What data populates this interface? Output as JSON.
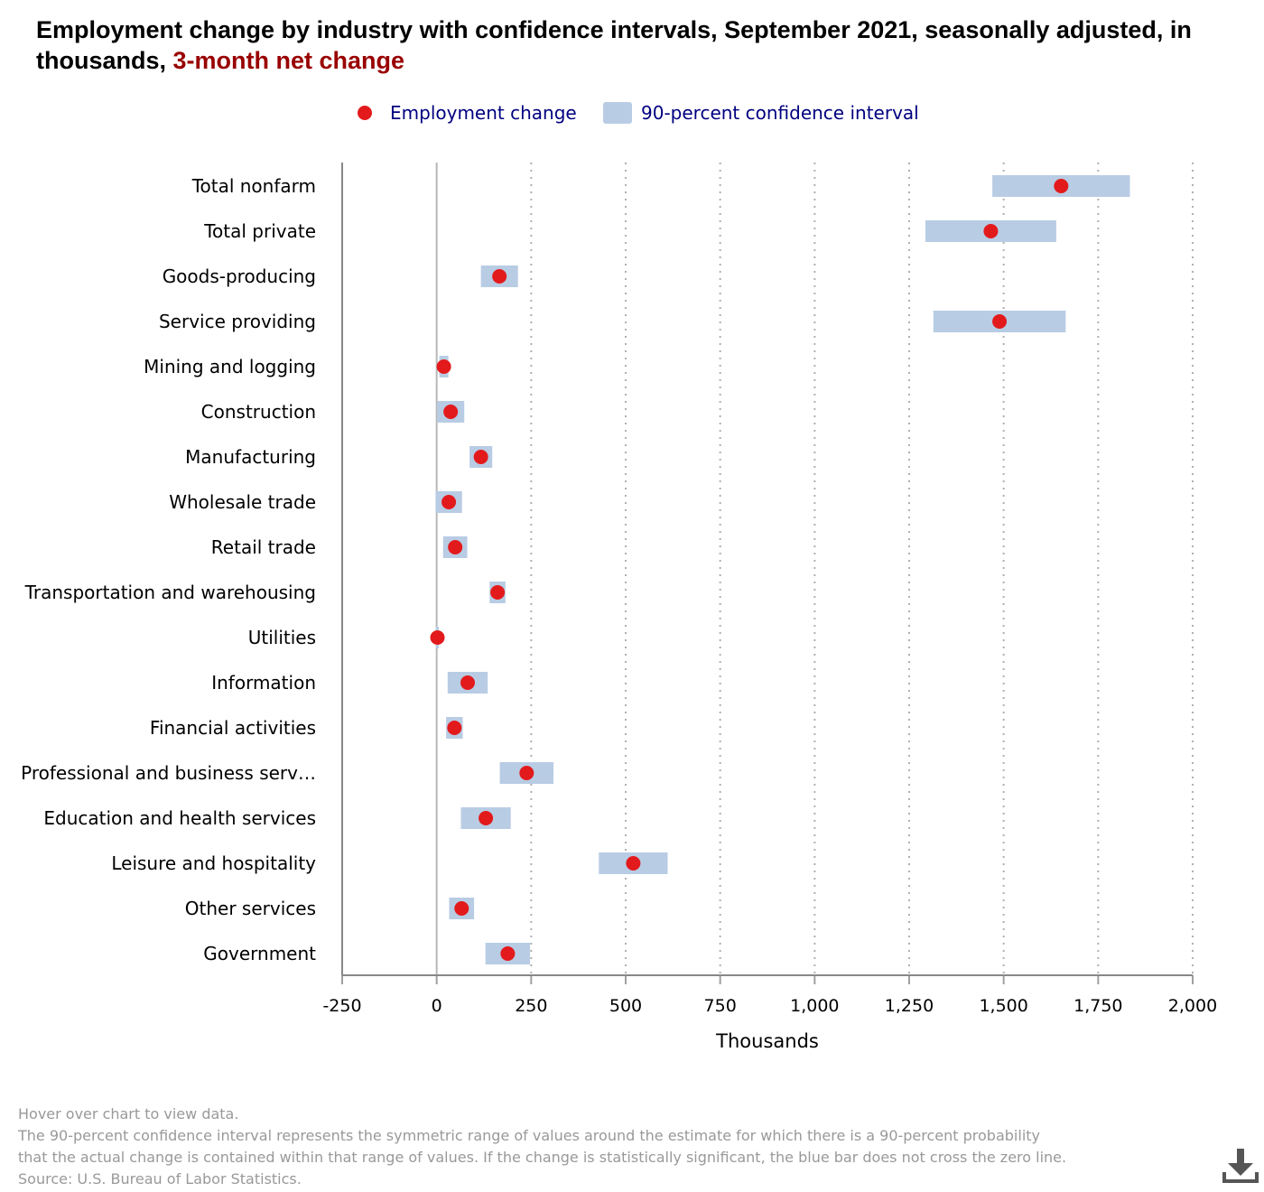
{
  "title": {
    "main": "Employment change by industry with confidence intervals, September 2021, seasonally adjusted, in thousands,",
    "highlight": "3-month net change"
  },
  "legend": {
    "point_label": "Employment change",
    "interval_label": "90-percent confidence interval"
  },
  "colors": {
    "point": "#e31a1c",
    "interval": "#b8cce4",
    "title_highlight": "#990000",
    "legend_text": "#000080",
    "notes_text": "#999999"
  },
  "chart_data": {
    "type": "scatter",
    "orientation": "horizontal",
    "title": "Employment change by industry with confidence intervals, September 2021, seasonally adjusted, in thousands, 3-month net change",
    "xlabel": "Thousands",
    "ylabel": "",
    "xlim": [
      -250,
      2000
    ],
    "xticks": [
      -250,
      0,
      250,
      500,
      750,
      1000,
      1250,
      1500,
      1750,
      2000
    ],
    "xtick_labels": [
      "-250",
      "0",
      "250",
      "500",
      "750",
      "1,000",
      "1,250",
      "1,500",
      "1,750",
      "2,000"
    ],
    "grid": "vertical dotted",
    "legend_position": "top-center",
    "categories": [
      "Total nonfarm",
      "Total private",
      "Goods-producing",
      "Service providing",
      "Mining and logging",
      "Construction",
      "Manufacturing",
      "Wholesale trade",
      "Retail trade",
      "Transportation and warehousing",
      "Utilities",
      "Information",
      "Financial activities",
      "Professional and business serv…",
      "Education and health services",
      "Leisure and hospitality",
      "Other services",
      "Government"
    ],
    "series": [
      {
        "name": "Employment change",
        "values": [
          1652,
          1466,
          166,
          1489,
          19,
          37,
          117,
          32,
          49,
          161,
          2,
          82,
          47,
          238,
          130,
          520,
          66,
          188
        ]
      },
      {
        "name": "90-percent confidence interval",
        "low": [
          1470,
          1293,
          117,
          1314,
          7,
          1,
          87,
          -3,
          17,
          140,
          0,
          29,
          25,
          167,
          64,
          429,
          33,
          129
        ],
        "high": [
          1834,
          1639,
          215,
          1664,
          31,
          73,
          147,
          67,
          81,
          182,
          4,
          135,
          69,
          309,
          196,
          611,
          99,
          247
        ]
      }
    ]
  },
  "notes": {
    "hover": "Hover over chart to view data.",
    "line1": "The 90-percent confidence interval represents the symmetric range of values around the estimate for which there is a 90-percent probability",
    "line2": "that the actual change is contained within that range of values. If the change is statistically significant, the blue bar does not cross the zero line.",
    "source": "Source: U.S. Bureau of Labor Statistics."
  },
  "download": {
    "icon": "download-icon"
  }
}
